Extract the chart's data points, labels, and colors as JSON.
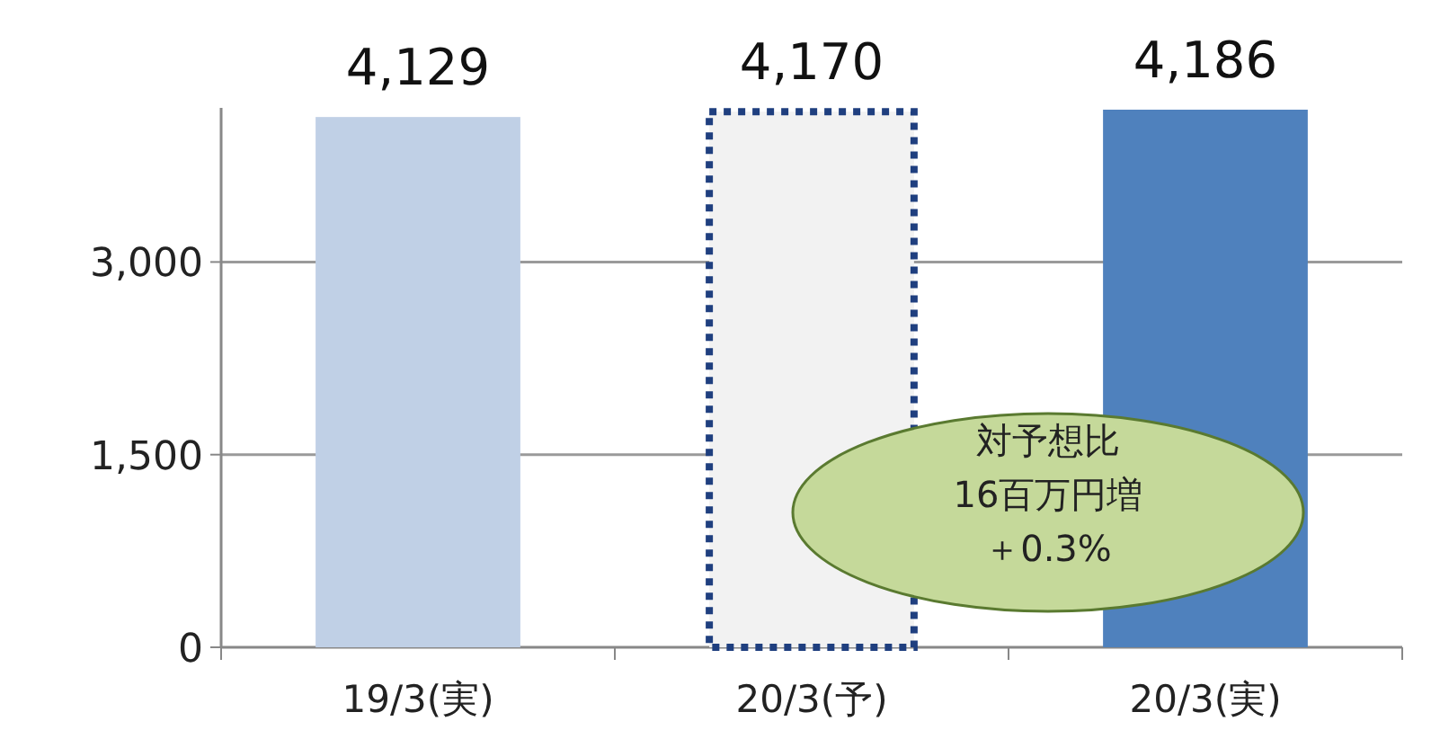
{
  "chart_data": {
    "type": "bar",
    "categories": [
      "19/3(実)",
      "20/3(予)",
      "20/3(実)"
    ],
    "series": [
      {
        "colors": [
          "#c0d0e6",
          null,
          "#4f81bd"
        ],
        "values": [
          4129,
          null,
          4186
        ],
        "value_labels": [
          "4,129",
          null,
          "4,186"
        ]
      },
      {
        "color": "#f2f2f2",
        "line_style": "dotted",
        "values": [
          null,
          4170,
          null
        ],
        "value_labels": [
          null,
          "4,170",
          null
        ]
      }
    ],
    "ylim": [
      0,
      4200
    ],
    "yticks": [
      0,
      {
        "value": 1500,
        "label": "1,500"
      },
      {
        "value": 3000,
        "label": "3,000"
      }
    ],
    "grid": "y",
    "annotations": [
      "対予想比",
      "16百万円増",
      "＋0.3%"
    ]
  }
}
